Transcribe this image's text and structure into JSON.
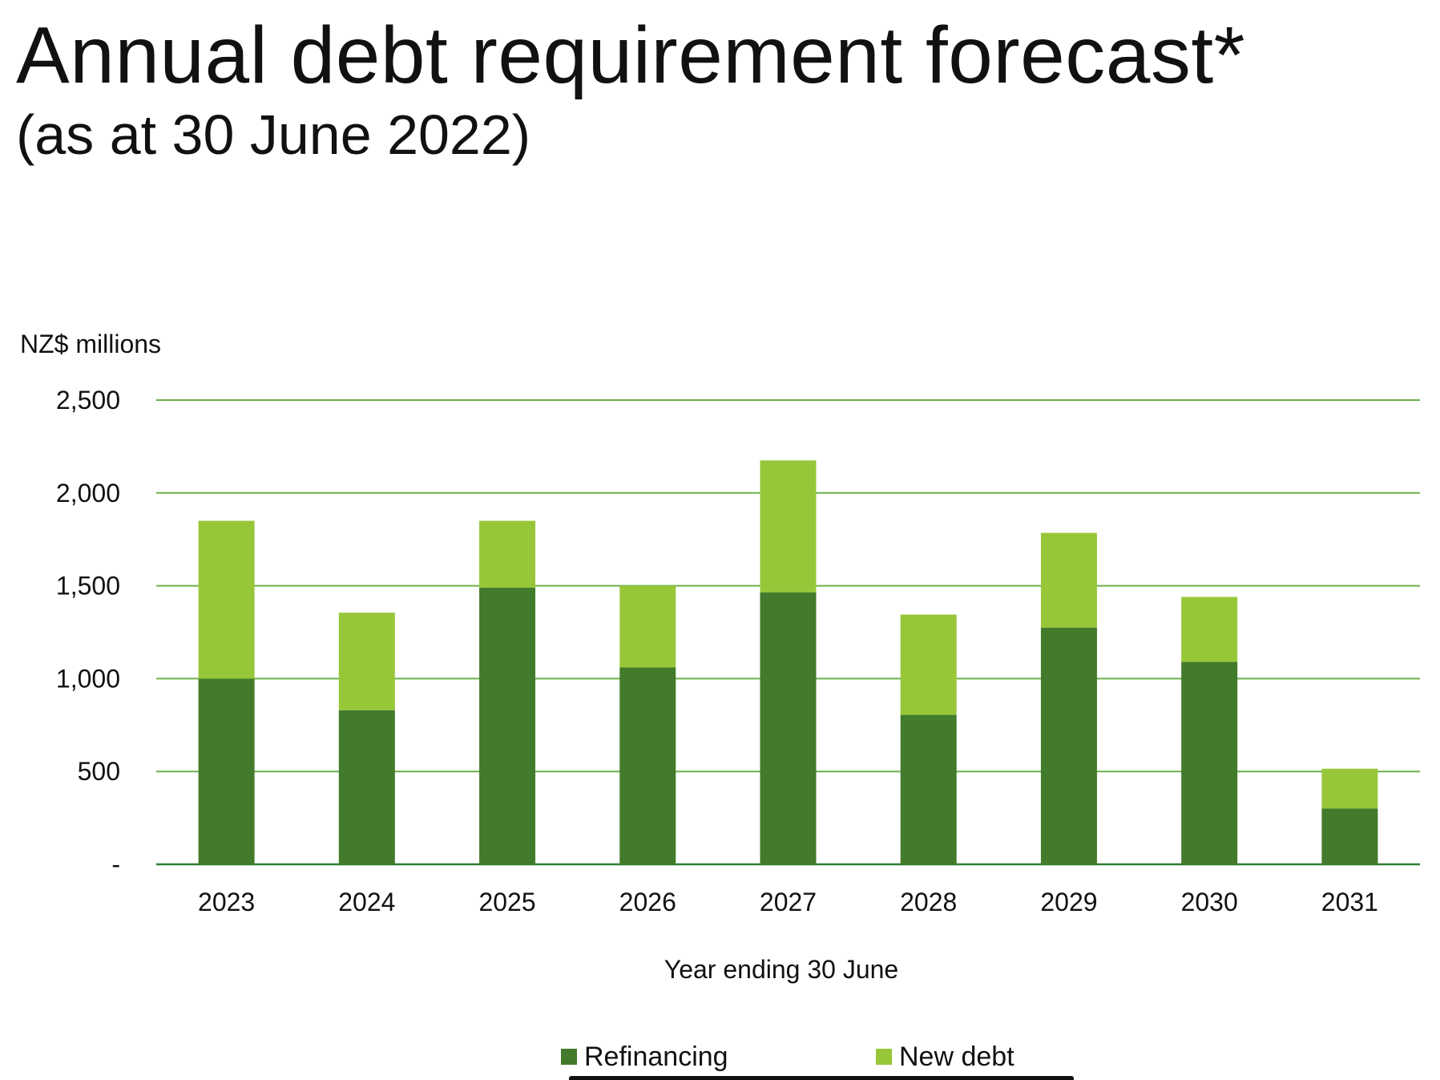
{
  "title": "Annual debt requirement forecast*",
  "subtitle": "(as at 30 June 2022)",
  "colors": {
    "refinancing": "#427b2b",
    "new_debt": "#97c739",
    "gridline": "#6bb04a",
    "axis": "#2e7d32"
  },
  "chart_data": {
    "type": "bar",
    "stacked": true,
    "title": "Annual debt requirement forecast*",
    "subtitle": "(as at 30 June 2022)",
    "ylabel": "NZ$ millions",
    "xlabel": "Year ending 30 June",
    "ylim": [
      0,
      2500
    ],
    "yticks": [
      0,
      500,
      1000,
      1500,
      2000,
      2500
    ],
    "ytick_labels": [
      "-",
      "500",
      "1,000",
      "1,500",
      "2,000",
      "2,500"
    ],
    "grid": true,
    "legend_position": "bottom",
    "categories": [
      "2023",
      "2024",
      "2025",
      "2026",
      "2027",
      "2028",
      "2029",
      "2030",
      "2031"
    ],
    "series": [
      {
        "name": "Refinancing",
        "color": "#427b2b",
        "values": [
          1000,
          830,
          1490,
          1060,
          1465,
          805,
          1275,
          1090,
          300
        ]
      },
      {
        "name": "New debt",
        "color": "#97c739",
        "values": [
          850,
          525,
          360,
          440,
          710,
          540,
          510,
          350,
          215
        ]
      }
    ]
  }
}
